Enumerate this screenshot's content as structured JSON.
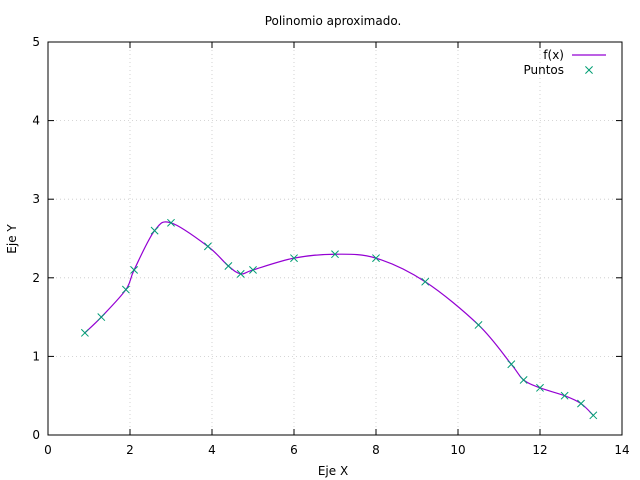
{
  "chart_data": {
    "type": "line",
    "title": "Polinomio aproximado.",
    "xlabel": "Eje X",
    "ylabel": "Eje Y",
    "xlim": [
      0,
      14
    ],
    "ylim": [
      0,
      5
    ],
    "grid": true,
    "legend_position": "top-right",
    "x_ticks": [
      0,
      2,
      4,
      6,
      8,
      10,
      12,
      14
    ],
    "y_ticks": [
      0,
      1,
      2,
      3,
      4,
      5
    ],
    "series": [
      {
        "name": "f(x)",
        "kind": "line",
        "color": "#9400d3",
        "x": [
          0.9,
          1.3,
          1.9,
          2.1,
          2.6,
          3.0,
          3.9,
          4.4,
          4.7,
          5.0,
          6.0,
          7.0,
          8.0,
          9.2,
          10.5,
          11.3,
          11.6,
          12.0,
          12.6,
          13.0,
          13.3
        ],
        "y": [
          1.3,
          1.5,
          1.85,
          2.1,
          2.6,
          2.7,
          2.4,
          2.15,
          2.05,
          2.1,
          2.25,
          2.3,
          2.25,
          1.95,
          1.4,
          0.9,
          0.7,
          0.6,
          0.5,
          0.4,
          0.25
        ]
      },
      {
        "name": "Puntos",
        "kind": "scatter",
        "marker": "x",
        "color": "#009e73",
        "x": [
          0.9,
          1.3,
          1.9,
          2.1,
          2.6,
          3.0,
          3.9,
          4.4,
          4.7,
          5.0,
          6.0,
          7.0,
          8.0,
          9.2,
          10.5,
          11.3,
          11.6,
          12.0,
          12.6,
          13.0,
          13.3
        ],
        "y": [
          1.3,
          1.5,
          1.85,
          2.1,
          2.6,
          2.7,
          2.4,
          2.15,
          2.05,
          2.1,
          2.25,
          2.3,
          2.25,
          1.95,
          1.4,
          0.9,
          0.7,
          0.6,
          0.5,
          0.4,
          0.25
        ]
      }
    ]
  }
}
